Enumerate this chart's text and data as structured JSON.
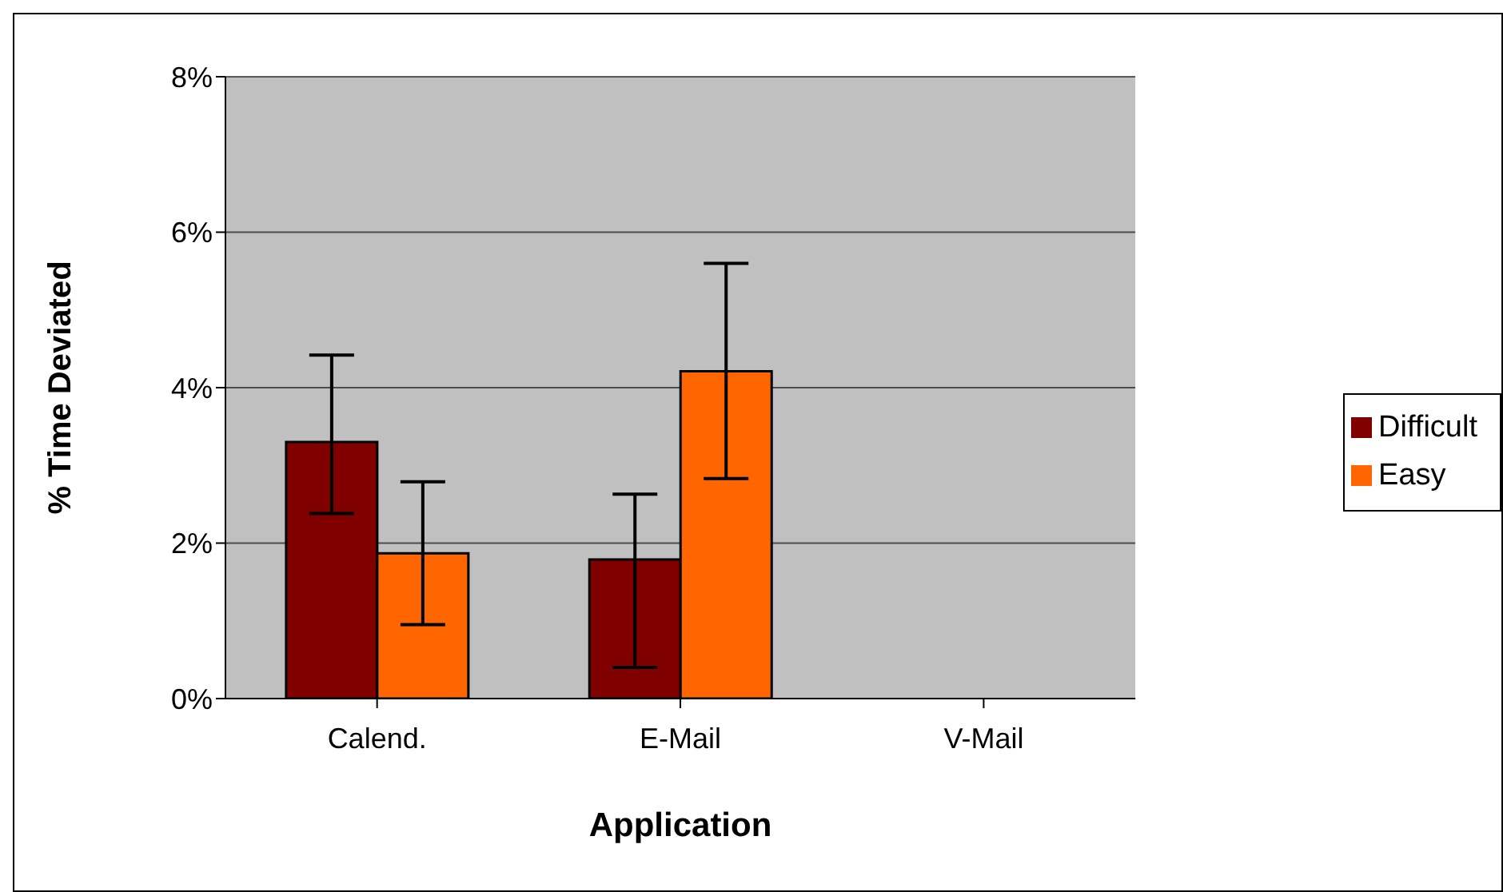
{
  "chart_data": {
    "type": "bar",
    "xlabel": "Application",
    "ylabel": "% Time Deviated",
    "categories": [
      "Calend.",
      "E-Mail",
      "V-Mail"
    ],
    "series": [
      {
        "name": "Difficult",
        "color": "#800000",
        "values": [
          3.3,
          1.79,
          0
        ],
        "errors": [
          [
            2.38,
            4.42
          ],
          [
            0.4,
            2.63
          ],
          null
        ]
      },
      {
        "name": "Easy",
        "color": "#ff6600",
        "values": [
          1.87,
          4.21,
          0
        ],
        "errors": [
          [
            0.95,
            2.79
          ],
          [
            2.83,
            5.6
          ],
          null
        ]
      }
    ],
    "ylim": [
      0,
      8
    ],
    "yticks": [
      {
        "value": 0,
        "label": "0%"
      },
      {
        "value": 2,
        "label": "2%"
      },
      {
        "value": 4,
        "label": "4%"
      },
      {
        "value": 6,
        "label": "6%"
      },
      {
        "value": 8,
        "label": "8%"
      }
    ],
    "grid": "y",
    "legend": "right"
  }
}
